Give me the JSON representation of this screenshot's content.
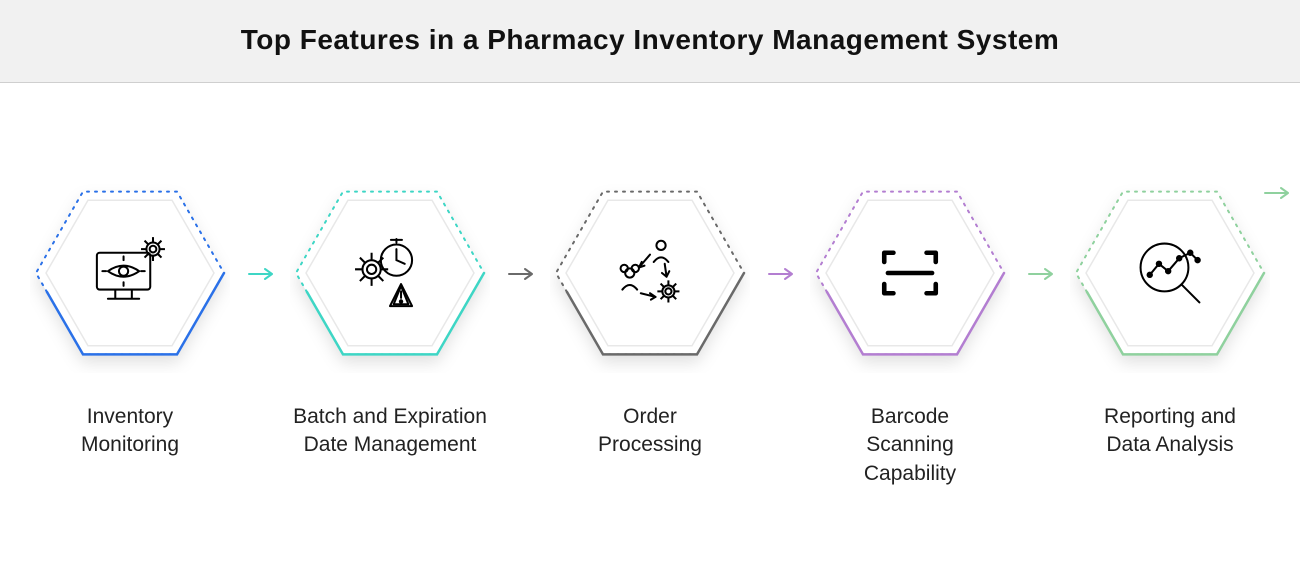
{
  "title": "Top Features in a Pharmacy Inventory Management System",
  "background_color": "#ffffff",
  "header_background": "#f1f1f1",
  "header_border": "#cfcfcf",
  "title_color": "#111111",
  "title_fontsize": 28,
  "label_fontsize": 21,
  "label_color": "#222222",
  "hexagon": {
    "fill": "#ffffff",
    "inner_stroke": "#e8e8e8",
    "stroke_width": 2.5,
    "dotted_stroke_width": 2,
    "shadow_color": "rgba(0,0,0,0.12)"
  },
  "icon_stroke": "#000000",
  "icon_stroke_width": 2.2,
  "features": [
    {
      "id": "inventory-monitoring",
      "label": "Inventory\nMonitoring",
      "accent_color": "#2b71e8",
      "icon": "monitor-eye-gear"
    },
    {
      "id": "batch-expiration",
      "label": "Batch and Expiration\nDate Management",
      "accent_color": "#3ed6c5",
      "icon": "clock-gear-warning"
    },
    {
      "id": "order-processing",
      "label": "Order\nProcessing",
      "accent_color": "#6a6a6a",
      "icon": "people-gear-flow"
    },
    {
      "id": "barcode-scanning",
      "label": "Barcode\nScanning\nCapability",
      "accent_color": "#b37ed1",
      "icon": "barcode-frame"
    },
    {
      "id": "reporting-analysis",
      "label": "Reporting and\nData Analysis",
      "accent_color": "#8fd19e",
      "icon": "magnifier-chart"
    }
  ],
  "trailing_arrow_color": "#8fd19e"
}
